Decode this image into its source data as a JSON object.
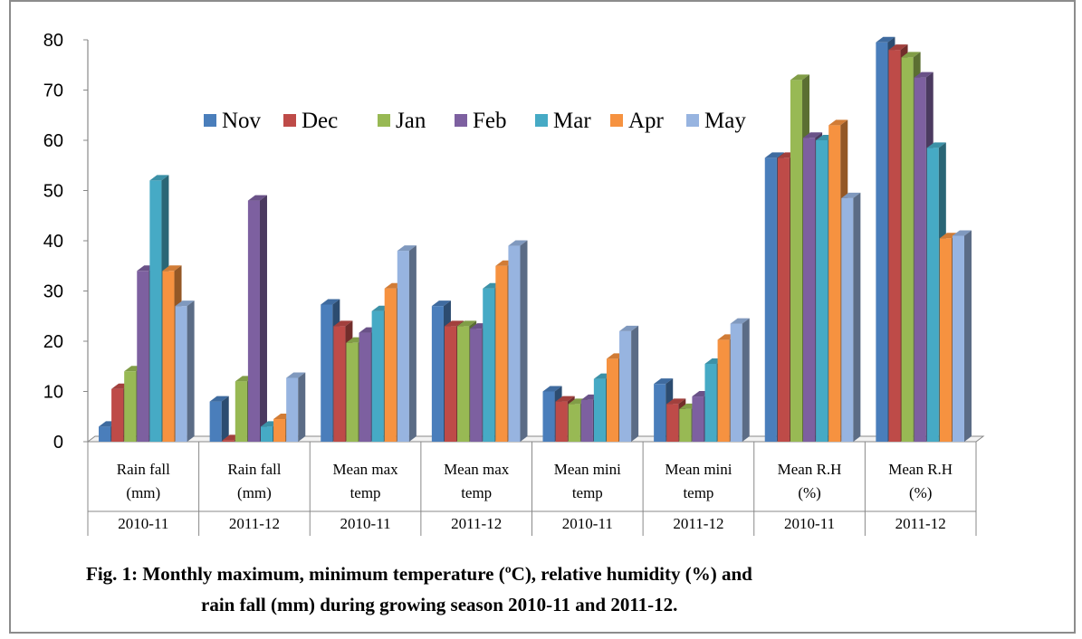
{
  "chart_data": {
    "type": "bar",
    "ylim": [
      0,
      80
    ],
    "yticks": [
      "0",
      "10",
      "20",
      "30",
      "40",
      "50",
      "60",
      "70",
      "80"
    ],
    "legend_position": "top-center",
    "categories": [
      {
        "line1": "Rain fall",
        "line2": "(mm)",
        "season": "2010-11"
      },
      {
        "line1": "Rain fall",
        "line2": "(mm)",
        "season": "2011-12"
      },
      {
        "line1": "Mean max",
        "line2": "temp",
        "season": "2010-11"
      },
      {
        "line1": "Mean max",
        "line2": "temp",
        "season": "2011-12"
      },
      {
        "line1": "Mean mini",
        "line2": "temp",
        "season": "2010-11"
      },
      {
        "line1": "Mean mini",
        "line2": "temp",
        "season": "2011-12"
      },
      {
        "line1": "Mean R.H",
        "line2": "(%)",
        "season": "2010-11"
      },
      {
        "line1": "Mean R.H",
        "line2": "(%)",
        "season": "2011-12"
      }
    ],
    "series": [
      {
        "name": "Nov",
        "color": "#4a7ebb",
        "values": [
          3,
          8,
          27.3,
          27,
          10,
          11.5,
          56.5,
          79.5
        ]
      },
      {
        "name": "Dec",
        "color": "#be4b48",
        "values": [
          10.5,
          0.3,
          23,
          23,
          8,
          7.5,
          56.5,
          78
        ]
      },
      {
        "name": "Jan",
        "color": "#98b954",
        "values": [
          14,
          12,
          19.7,
          23,
          7.5,
          6.5,
          72,
          76.5
        ]
      },
      {
        "name": "Feb",
        "color": "#7d60a0",
        "values": [
          34,
          48,
          21.7,
          22.5,
          8.3,
          9,
          60.5,
          72.5
        ]
      },
      {
        "name": "Mar",
        "color": "#46aac5",
        "values": [
          52,
          3,
          26,
          30.5,
          12.5,
          15.5,
          60,
          58.5
        ]
      },
      {
        "name": "Apr",
        "color": "#f69240",
        "values": [
          34,
          4.5,
          30.5,
          35,
          16.5,
          20.3,
          63,
          40.5
        ]
      },
      {
        "name": "May",
        "color": "#97b4e0",
        "values": [
          27,
          12.7,
          38,
          39,
          22,
          23.5,
          48.5,
          41
        ]
      }
    ]
  },
  "caption": {
    "line1": "Fig. 1: Monthly maximum, minimum temperature (ºC), relative humidity (%)  and",
    "line2": "rain fall  (mm) during growing season 2010-11 and 2011-12."
  }
}
